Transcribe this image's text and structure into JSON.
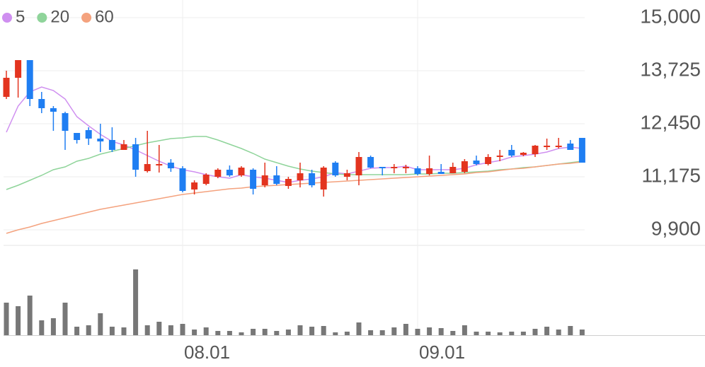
{
  "chart_data": {
    "type": "candlestick",
    "categories": [
      null,
      null,
      null,
      null,
      null,
      null,
      null,
      null,
      null,
      null,
      null,
      null,
      null,
      null,
      null,
      "08.01",
      null,
      null,
      null,
      null,
      null,
      null,
      null,
      null,
      null,
      null,
      null,
      null,
      null,
      null,
      null,
      null,
      null,
      null,
      null,
      "09.01",
      null,
      null,
      null,
      null,
      null,
      null,
      null,
      null,
      null,
      null,
      null,
      null,
      null,
      null
    ],
    "open": [
      13096,
      13555,
      13980,
      13045,
      12824,
      12705,
      12229,
      12297,
      12093,
      12059,
      11821,
      11957,
      11311,
      11447,
      11515,
      11379,
      10869,
      11005,
      11175,
      11345,
      11209,
      11345,
      10971,
      11209,
      10954,
      11090,
      11260,
      10869,
      11515,
      11175,
      11209,
      11651,
      11413,
      11379,
      11396,
      11379,
      11243,
      11294,
      11260,
      11294,
      11566,
      11481,
      11651,
      11821,
      11702,
      11719,
      11889,
      11906,
      11974,
      12110
    ],
    "high": [
      13725,
      13980,
      13980,
      13215,
      12875,
      12739,
      12229,
      12365,
      12450,
      12365,
      12059,
      12110,
      12280,
      11940,
      11600,
      11430,
      11090,
      11260,
      11379,
      11447,
      11430,
      11379,
      11515,
      11430,
      11175,
      11515,
      11345,
      11430,
      11549,
      11345,
      11770,
      11685,
      11413,
      11481,
      11464,
      11430,
      11685,
      11481,
      11515,
      11600,
      11685,
      11719,
      11821,
      11940,
      11770,
      11940,
      12093,
      12110,
      12059,
      12110
    ],
    "low": [
      13045,
      13079,
      12875,
      12705,
      12280,
      11821,
      11974,
      11940,
      11770,
      11770,
      11821,
      11175,
      11277,
      11277,
      11294,
      10801,
      10750,
      10971,
      11141,
      11175,
      11175,
      10750,
      10920,
      10971,
      10886,
      10920,
      10920,
      10699,
      11175,
      11090,
      10971,
      11379,
      11209,
      11260,
      11260,
      11209,
      11209,
      11243,
      11260,
      11260,
      11447,
      11447,
      11549,
      11651,
      11668,
      11651,
      11821,
      11855,
      11821,
      11515
    ],
    "close": [
      13555,
      13980,
      13045,
      12824,
      12739,
      12280,
      12059,
      12093,
      12025,
      11821,
      11957,
      11345,
      11481,
      11481,
      11379,
      10835,
      11039,
      11226,
      11345,
      11209,
      11396,
      10886,
      11209,
      11005,
      11124,
      11260,
      10971,
      11396,
      11209,
      11260,
      11651,
      11396,
      11379,
      11413,
      11413,
      11243,
      11379,
      11243,
      11413,
      11549,
      11481,
      11651,
      11685,
      11685,
      11753,
      11923,
      11923,
      11923,
      11821,
      11515
    ],
    "volume": [
      46,
      41,
      56,
      21,
      24,
      46,
      12,
      14,
      31,
      12,
      11,
      93,
      14,
      19,
      14,
      16,
      8,
      11,
      6,
      6,
      4,
      9,
      9,
      6,
      8,
      14,
      12,
      13,
      4,
      5,
      18,
      7,
      7,
      11,
      16,
      9,
      11,
      10,
      6,
      14,
      5,
      5,
      4,
      5,
      5,
      9,
      12,
      8,
      13,
      8
    ],
    "up_color": "#e3341f",
    "down_color": "#1f7ef2",
    "volume_color": "#777777",
    "series": [
      {
        "name": "5",
        "color": "#cf8ff0",
        "values": [
          12246,
          12875,
          13215,
          13334,
          13249,
          13045,
          12620,
          12399,
          12195,
          12025,
          11940,
          11821,
          11685,
          11549,
          11430,
          11345,
          11294,
          11226,
          11175,
          11141,
          11226,
          11175,
          11141,
          11090,
          11039,
          11090,
          11124,
          11175,
          11277,
          11243,
          11311,
          11379,
          11396,
          11396,
          11430,
          11345,
          11345,
          11345,
          11345,
          11379,
          11464,
          11515,
          11566,
          11651,
          11685,
          11719,
          11770,
          11855,
          11889,
          11855
        ]
      },
      {
        "name": "20",
        "color": "#8fd49a",
        "values": [
          10869,
          10971,
          11090,
          11209,
          11345,
          11413,
          11549,
          11617,
          11719,
          11787,
          11855,
          11923,
          11991,
          12042,
          12093,
          12110,
          12144,
          12144,
          12059,
          11957,
          11855,
          11736,
          11600,
          11515,
          11430,
          11362,
          11311,
          11277,
          11243,
          11226,
          11226,
          11226,
          11226,
          11226,
          11226,
          11243,
          11243,
          11260,
          11260,
          11277,
          11294,
          11311,
          11345,
          11362,
          11396,
          11413,
          11447,
          11481,
          11515,
          11549
        ]
      },
      {
        "name": "60",
        "color": "#f4a27e",
        "values": [
          9815,
          9900,
          9968,
          10053,
          10121,
          10189,
          10257,
          10325,
          10393,
          10444,
          10495,
          10546,
          10597,
          10648,
          10699,
          10750,
          10784,
          10818,
          10852,
          10886,
          10903,
          10937,
          10954,
          10971,
          10988,
          11005,
          11022,
          11039,
          11056,
          11073,
          11090,
          11107,
          11124,
          11141,
          11158,
          11175,
          11192,
          11209,
          11226,
          11243,
          11277,
          11294,
          11328,
          11362,
          11379,
          11413,
          11447,
          11481,
          11498,
          11532
        ]
      }
    ],
    "ylim": [
      9560,
      15340
    ],
    "yticks": [
      {
        "value": 15000,
        "label": "15,000"
      },
      {
        "value": 13725,
        "label": "13,725"
      },
      {
        "value": 12450,
        "label": "12,450"
      },
      {
        "value": 11175,
        "label": "11,175"
      },
      {
        "value": 9900,
        "label": "9,900"
      }
    ],
    "vlim": [
      0,
      122
    ],
    "grid": true
  }
}
